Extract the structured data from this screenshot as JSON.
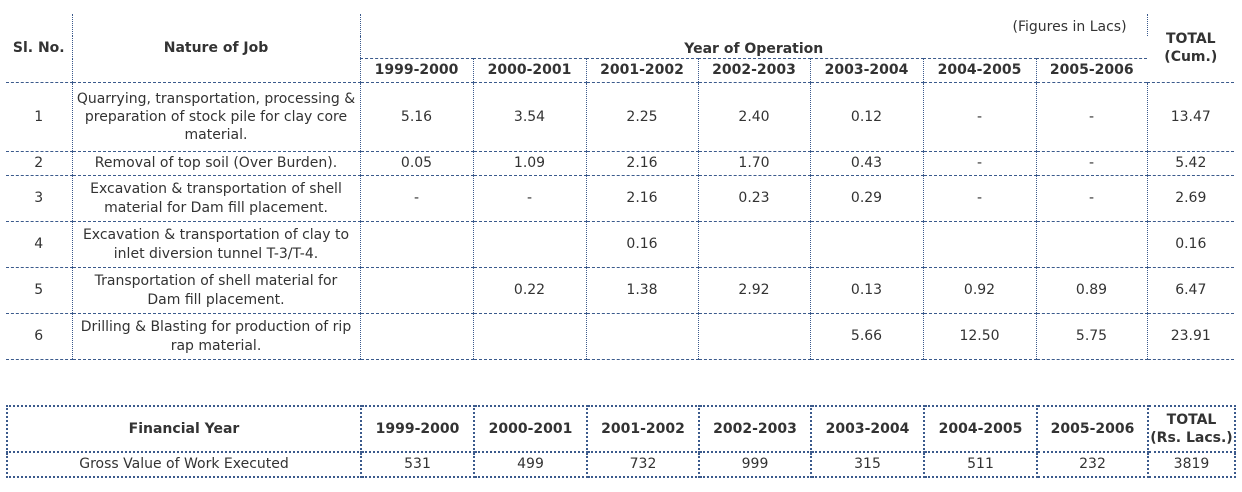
{
  "operations": {
    "figures_note": "(Figures in Lacs)",
    "sl_header": "Sl. No.",
    "job_header": "Nature of Job",
    "year_group_header": "Year of Operation",
    "total_header_line1": "TOTAL",
    "total_header_line2": "(Cum.)",
    "years": [
      "1999-2000",
      "2000-2001",
      "2001-2002",
      "2002-2003",
      "2003-2004",
      "2004-2005",
      "2005-2006"
    ],
    "rows": [
      {
        "sl": "1",
        "job": "Quarrying, transportation, processing & preparation of stock pile for clay core material.",
        "values": [
          "5.16",
          "3.54",
          "2.25",
          "2.40",
          "0.12",
          "-",
          "-"
        ],
        "total": "13.47"
      },
      {
        "sl": "2",
        "job": "Removal of top soil (Over Burden).",
        "values": [
          "0.05",
          "1.09",
          "2.16",
          "1.70",
          "0.43",
          "-",
          "-"
        ],
        "total": "5.42"
      },
      {
        "sl": "3",
        "job": "Excavation & transportation of shell material for Dam fill placement.",
        "values": [
          "-",
          "-",
          "2.16",
          "0.23",
          "0.29",
          "-",
          "-"
        ],
        "total": "2.69"
      },
      {
        "sl": "4",
        "job": "Excavation & transportation of clay to inlet diversion tunnel T-3/T-4.",
        "values": [
          "",
          "",
          "0.16",
          "",
          "",
          "",
          ""
        ],
        "total": "0.16"
      },
      {
        "sl": "5",
        "job": "Transportation of shell material for Dam fill placement.",
        "values": [
          "",
          "0.22",
          "1.38",
          "2.92",
          "0.13",
          "0.92",
          "0.89"
        ],
        "total": "6.47"
      },
      {
        "sl": "6",
        "job": "Drilling & Blasting for production of rip rap material.",
        "values": [
          "",
          "",
          "",
          "",
          "5.66",
          "12.50",
          "5.75"
        ],
        "total": "23.91"
      }
    ]
  },
  "financial": {
    "year_header": "Financial Year",
    "years": [
      "1999-2000",
      "2000-2001",
      "2001-2002",
      "2002-2003",
      "2003-2004",
      "2004-2005",
      "2005-2006"
    ],
    "total_header_line1": "TOTAL",
    "total_header_line2": "(Rs. Lacs.)",
    "row_label": "Gross Value of Work Executed",
    "values": [
      "531",
      "499",
      "732",
      "999",
      "315",
      "511",
      "232"
    ],
    "total": "3819"
  },
  "colors": {
    "border": "#3b5a8c",
    "text": "#333333"
  }
}
